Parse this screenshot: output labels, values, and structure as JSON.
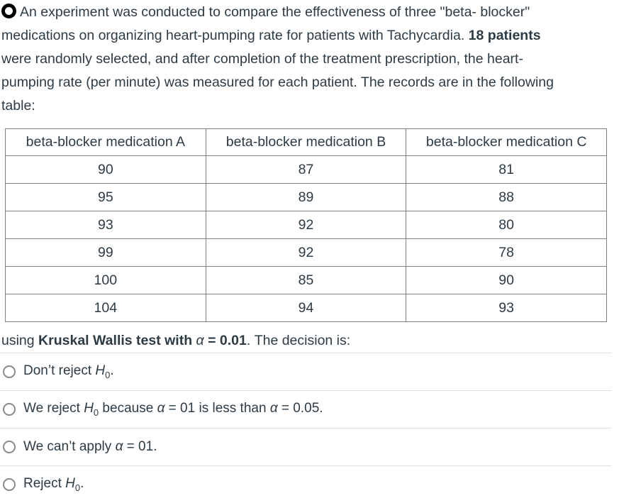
{
  "colors": {
    "text": "#2D3B45",
    "table_border": "#7f7f7f",
    "option_divider": "#e0e0e0",
    "radio_border": "#8a8a8a",
    "status_icon": "#000000"
  },
  "icons": {
    "question_status": "black-circle-outline",
    "radio": "empty-radio-circle"
  },
  "question": {
    "line1": "An experiment was conducted to compare the effectiveness of three \"beta- blocker\"",
    "line2_regular": "medications on organizing heart-pumping rate for patients with Tachycardia. ",
    "line2_bold": "18 patients",
    "line3": "were randomly selected, and after completion of the treatment prescription, the heart-",
    "line4": "pumping rate (per minute) was measured for each patient. The records are in the following",
    "line5": "table:"
  },
  "table": {
    "headers": [
      "beta-blocker medication A",
      "beta-blocker medication B",
      "beta-blocker medication C"
    ],
    "rows": [
      [
        90,
        87,
        81
      ],
      [
        95,
        89,
        88
      ],
      [
        93,
        92,
        80
      ],
      [
        99,
        92,
        78
      ],
      [
        100,
        85,
        90
      ],
      [
        104,
        94,
        93
      ]
    ]
  },
  "using_line": {
    "p1": "using ",
    "b1": "Kruskal Wallis test with ",
    "alpha": "α",
    "b2": " = 0.01",
    "p2": ". The decision is:"
  },
  "options": [
    {
      "p1": "Don’t reject ",
      "h": "H",
      "sub": "0",
      "p2": "."
    },
    {
      "p1": "We reject ",
      "h": "H",
      "sub": "0",
      "p2": " because ",
      "a1": "α",
      "p3": " = 01 is less than ",
      "a2": "α",
      "p4": " = 0.05."
    },
    {
      "p1": "We can’t apply ",
      "a1": "α",
      "p2": " = 01."
    },
    {
      "p1": "Reject ",
      "h": "H",
      "sub": "0",
      "p2": "."
    }
  ]
}
